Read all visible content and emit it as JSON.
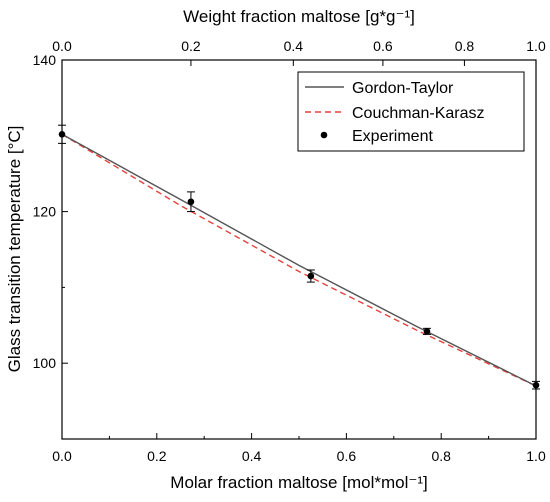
{
  "chart_data": {
    "type": "line",
    "xlabel": "Molar fraction maltose [mol*mol⁻¹]",
    "x2label": "Weight fraction maltose [g*g⁻¹]",
    "ylabel": "Glass transition temperature [°C]",
    "xlim": [
      0.0,
      1.0
    ],
    "ylim": [
      90,
      140
    ],
    "x_ticks": [
      "0.0",
      "0.2",
      "0.4",
      "0.6",
      "0.8",
      "1.0"
    ],
    "x2_ticks": [
      "0.0",
      "0.2",
      "0.4",
      "0.6",
      "0.8",
      "1.0"
    ],
    "x2_tick_molar_positions": [
      0.0,
      0.272,
      0.488,
      0.677,
      0.849,
      1.0
    ],
    "y_ticks": [
      100,
      120,
      140
    ],
    "legend_position": "top-right",
    "series": [
      {
        "name": "Gordon-Taylor",
        "style": "solid",
        "color": "#555555",
        "x": [
          0.0,
          0.25,
          0.5,
          0.75,
          1.0
        ],
        "y": [
          130.2,
          121.6,
          112.9,
          104.8,
          97.0
        ]
      },
      {
        "name": "Couchman-Karasz",
        "style": "dashed",
        "color": "#e8403c",
        "x": [
          0.0,
          0.25,
          0.5,
          0.75,
          1.0
        ],
        "y": [
          130.2,
          120.8,
          112.1,
          104.3,
          97.0
        ]
      },
      {
        "name": "Experiment",
        "style": "points",
        "color": "#000000",
        "x": [
          0.0,
          0.272,
          0.525,
          0.77,
          1.0
        ],
        "y": [
          130.2,
          121.3,
          111.5,
          104.2,
          97.1
        ],
        "error": [
          1.2,
          1.3,
          0.8,
          0.4,
          0.5
        ]
      }
    ]
  }
}
